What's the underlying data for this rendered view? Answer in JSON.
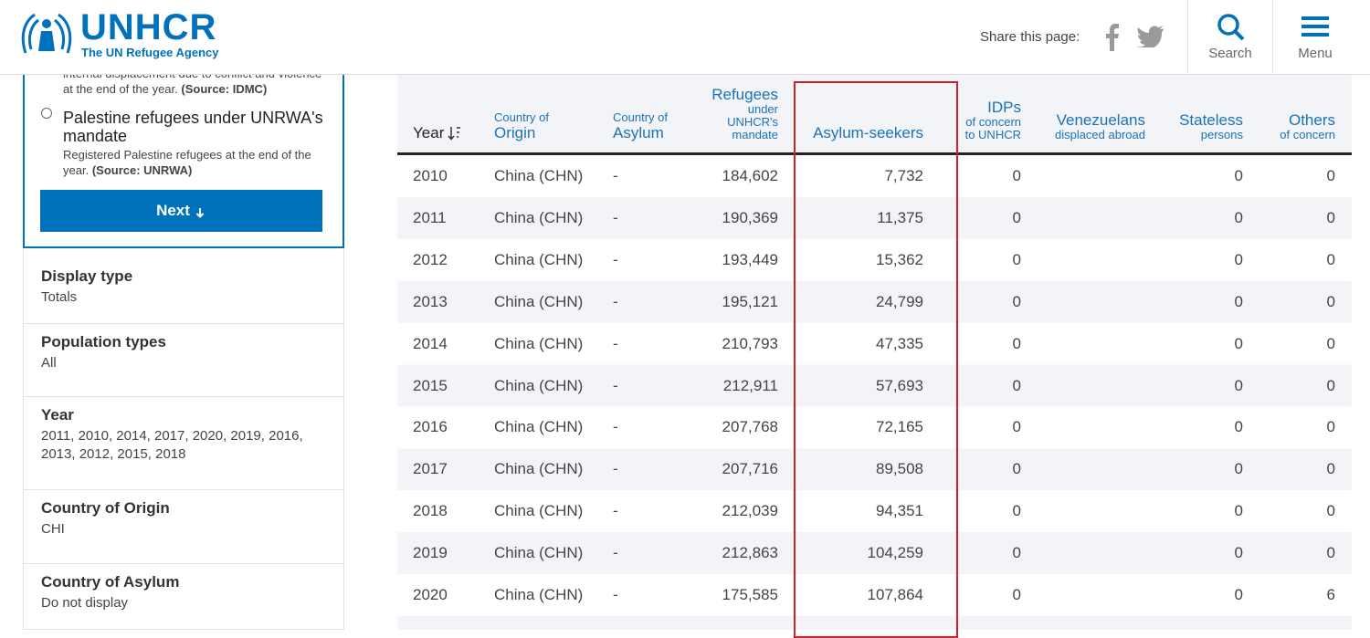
{
  "header": {
    "logo_name": "UNHCR",
    "logo_tagline": "The UN Refugee Agency",
    "share_label": "Share this page:",
    "search": "Search",
    "menu": "Menu"
  },
  "sidebar": {
    "previous_option": {
      "description": "internal displacement due to conflict and violence at the end of the year.",
      "source": "(Source: IDMC)"
    },
    "option": {
      "label": "Palestine refugees under UNRWA's mandate",
      "description": "Registered Palestine refugees at the end of the year.",
      "source": "(Source: UNRWA)"
    },
    "next_button": "Next",
    "filters": [
      {
        "label": "Display type",
        "value": "Totals"
      },
      {
        "label": "Population types",
        "value": "All"
      },
      {
        "label": "Year",
        "value": "2011, 2010, 2014, 2017, 2020, 2019, 2016, 2013, 2012, 2015, 2018"
      },
      {
        "label": "Country of Origin",
        "value": "CHI"
      },
      {
        "label": "Country of Asylum",
        "value": "Do not display"
      }
    ]
  },
  "table": {
    "columns": [
      {
        "label": "Year"
      },
      {
        "pre": "Country of",
        "label": "Origin"
      },
      {
        "pre": "Country of",
        "label": "Asylum"
      },
      {
        "label": "Refugees",
        "sub": "under UNHCR's mandate"
      },
      {
        "label": "Asylum-seekers"
      },
      {
        "label": "IDPs",
        "sub": "of concern to UNHCR"
      },
      {
        "label": "Venezuelans",
        "sub": "displaced abroad"
      },
      {
        "label": "Stateless",
        "sub": "persons"
      },
      {
        "label": "Others",
        "sub": "of concern"
      }
    ],
    "rows": [
      {
        "year": "2010",
        "origin": "China (CHN)",
        "asylum": "-",
        "refugees": "184,602",
        "asylum_seekers": "7,732",
        "idps": "0",
        "stateless": "0",
        "others": "0"
      },
      {
        "year": "2011",
        "origin": "China (CHN)",
        "asylum": "-",
        "refugees": "190,369",
        "asylum_seekers": "11,375",
        "idps": "0",
        "stateless": "0",
        "others": "0"
      },
      {
        "year": "2012",
        "origin": "China (CHN)",
        "asylum": "-",
        "refugees": "193,449",
        "asylum_seekers": "15,362",
        "idps": "0",
        "stateless": "0",
        "others": "0"
      },
      {
        "year": "2013",
        "origin": "China (CHN)",
        "asylum": "-",
        "refugees": "195,121",
        "asylum_seekers": "24,799",
        "idps": "0",
        "stateless": "0",
        "others": "0"
      },
      {
        "year": "2014",
        "origin": "China (CHN)",
        "asylum": "-",
        "refugees": "210,793",
        "asylum_seekers": "47,335",
        "idps": "0",
        "stateless": "0",
        "others": "0"
      },
      {
        "year": "2015",
        "origin": "China (CHN)",
        "asylum": "-",
        "refugees": "212,911",
        "asylum_seekers": "57,693",
        "idps": "0",
        "stateless": "0",
        "others": "0"
      },
      {
        "year": "2016",
        "origin": "China (CHN)",
        "asylum": "-",
        "refugees": "207,768",
        "asylum_seekers": "72,165",
        "idps": "0",
        "stateless": "0",
        "others": "0"
      },
      {
        "year": "2017",
        "origin": "China (CHN)",
        "asylum": "-",
        "refugees": "207,716",
        "asylum_seekers": "89,508",
        "idps": "0",
        "stateless": "0",
        "others": "0"
      },
      {
        "year": "2018",
        "origin": "China (CHN)",
        "asylum": "-",
        "refugees": "212,039",
        "asylum_seekers": "94,351",
        "idps": "0",
        "stateless": "0",
        "others": "0"
      },
      {
        "year": "2019",
        "origin": "China (CHN)",
        "asylum": "-",
        "refugees": "212,863",
        "asylum_seekers": "104,259",
        "idps": "0",
        "stateless": "0",
        "others": "0"
      },
      {
        "year": "2020",
        "origin": "China (CHN)",
        "asylum": "-",
        "refugees": "175,585",
        "asylum_seekers": "107,864",
        "idps": "0",
        "stateless": "0",
        "others": "6"
      }
    ]
  }
}
